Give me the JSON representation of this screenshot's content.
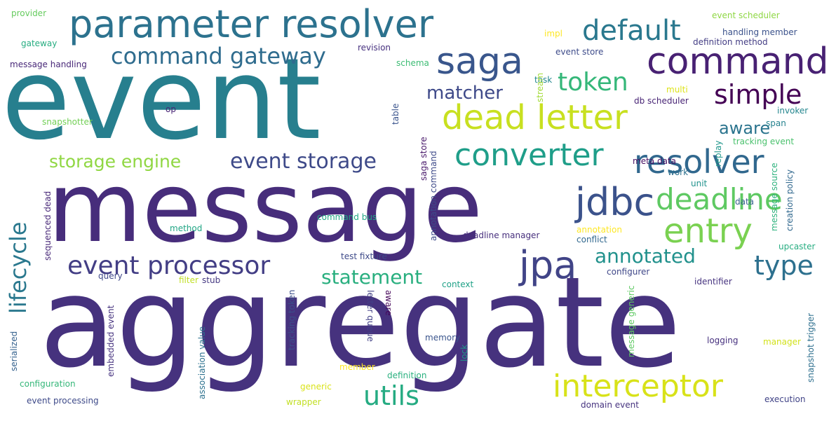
{
  "words": [
    {
      "text": "aggregate",
      "color": "#46327e"
    },
    {
      "text": "message",
      "color": "#472d7b"
    },
    {
      "text": "event",
      "color": "#277f8e"
    },
    {
      "text": "parameter resolver",
      "color": "#2c728e"
    },
    {
      "text": "command",
      "color": "#482173"
    },
    {
      "text": "saga",
      "color": "#39568c"
    },
    {
      "text": "default",
      "color": "#2a788e"
    },
    {
      "text": "command gateway",
      "color": "#2f6c8e"
    },
    {
      "text": "dead letter",
      "color": "#c8e020"
    },
    {
      "text": "token",
      "color": "#35b779"
    },
    {
      "text": "simple",
      "color": "#440154"
    },
    {
      "text": "resolver",
      "color": "#31688e"
    },
    {
      "text": "converter",
      "color": "#1f9e89"
    },
    {
      "text": "jdbc",
      "color": "#3b528b"
    },
    {
      "text": "deadline",
      "color": "#5ec962"
    },
    {
      "text": "entry",
      "color": "#7ad151"
    },
    {
      "text": "jpa",
      "color": "#414487"
    },
    {
      "text": "event processor",
      "color": "#433e85"
    },
    {
      "text": "interceptor",
      "color": "#d8e219"
    },
    {
      "text": "utils",
      "color": "#25ab82"
    },
    {
      "text": "type",
      "color": "#2d708e"
    },
    {
      "text": "annotated",
      "color": "#21918c"
    },
    {
      "text": "statement",
      "color": "#29af7f"
    },
    {
      "text": "event storage",
      "color": "#3e4a89"
    },
    {
      "text": "storage engine",
      "color": "#90d743"
    },
    {
      "text": "lifecycle",
      "color": "#2a788e"
    },
    {
      "text": "matcher",
      "color": "#3e4989"
    },
    {
      "text": "aware",
      "color": "#2b748e"
    },
    {
      "text": "provider",
      "color": "#65cb5e"
    },
    {
      "text": "gateway",
      "color": "#27ad81"
    },
    {
      "text": "message handling",
      "color": "#482878"
    },
    {
      "text": "revision",
      "color": "#46307e"
    },
    {
      "text": "schema",
      "color": "#3dbc74"
    },
    {
      "text": "impl",
      "color": "#fde725"
    },
    {
      "text": "event scheduler",
      "color": "#8fd744"
    },
    {
      "text": "handling member",
      "color": "#3b528b"
    },
    {
      "text": "definition method",
      "color": "#433d84"
    },
    {
      "text": "event store",
      "color": "#3e4c8a"
    },
    {
      "text": "task",
      "color": "#24878e"
    },
    {
      "text": "stream",
      "color": "#a2da37"
    },
    {
      "text": "multi",
      "color": "#dde318"
    },
    {
      "text": "db scheduler",
      "color": "#482475"
    },
    {
      "text": "invoker",
      "color": "#24868e"
    },
    {
      "text": "span",
      "color": "#26828e"
    },
    {
      "text": "tracking event",
      "color": "#4ac16d"
    },
    {
      "text": "snapshotter",
      "color": "#73d056"
    },
    {
      "text": "op",
      "color": "#482475"
    },
    {
      "text": "table",
      "color": "#3a548c"
    },
    {
      "text": "deadline manager",
      "color": "#472f7d"
    },
    {
      "text": "meta data",
      "color": "#471063"
    },
    {
      "text": "replay",
      "color": "#1f968b"
    },
    {
      "text": "work",
      "color": "#2d708e"
    },
    {
      "text": "unit",
      "color": "#20928c"
    },
    {
      "text": "data",
      "color": "#355f8d"
    },
    {
      "text": "message source",
      "color": "#2db27d"
    },
    {
      "text": "creation policy",
      "color": "#31688e"
    },
    {
      "text": "saga store",
      "color": "#48186a"
    },
    {
      "text": "annotation command",
      "color": "#3e4a89"
    },
    {
      "text": "command bus",
      "color": "#22a884"
    },
    {
      "text": "method",
      "color": "#21a685"
    },
    {
      "text": "annotation",
      "color": "#fde725"
    },
    {
      "text": "conflict",
      "color": "#31688e"
    },
    {
      "text": "sequenced dead",
      "color": "#482878"
    },
    {
      "text": "test fixture",
      "color": "#3e4a89"
    },
    {
      "text": "upcaster",
      "color": "#27ad81"
    },
    {
      "text": "configurer",
      "color": "#3f4788"
    },
    {
      "text": "query",
      "color": "#3f4889"
    },
    {
      "text": "filter",
      "color": "#c0df25"
    },
    {
      "text": "stub",
      "color": "#453882"
    },
    {
      "text": "context",
      "color": "#1fa187"
    },
    {
      "text": "identifier",
      "color": "#46337f"
    },
    {
      "text": "tracking token",
      "color": "#3c4f8a"
    },
    {
      "text": "letter queue",
      "color": "#424086"
    },
    {
      "text": "aware",
      "color": "#46075a"
    },
    {
      "text": "message generic",
      "color": "#5ec962"
    },
    {
      "text": "snapshot trigger",
      "color": "#2e6f8e"
    },
    {
      "text": "serialized",
      "color": "#34618d"
    },
    {
      "text": "embedded event",
      "color": "#46337f"
    },
    {
      "text": "association value",
      "color": "#2c718e"
    },
    {
      "text": "memory",
      "color": "#3a548c"
    },
    {
      "text": "lock",
      "color": "#1f9a8a"
    },
    {
      "text": "logging",
      "color": "#46307e"
    },
    {
      "text": "manager",
      "color": "#d2e21b"
    },
    {
      "text": "member",
      "color": "#fde725"
    },
    {
      "text": "definition",
      "color": "#2ab07f"
    },
    {
      "text": "configuration",
      "color": "#35b779"
    },
    {
      "text": "generic",
      "color": "#dae319"
    },
    {
      "text": "wrapper",
      "color": "#c2df23"
    },
    {
      "text": "event processing",
      "color": "#3e4a89"
    },
    {
      "text": "domain event",
      "color": "#46337f"
    },
    {
      "text": "execution",
      "color": "#414487"
    }
  ]
}
